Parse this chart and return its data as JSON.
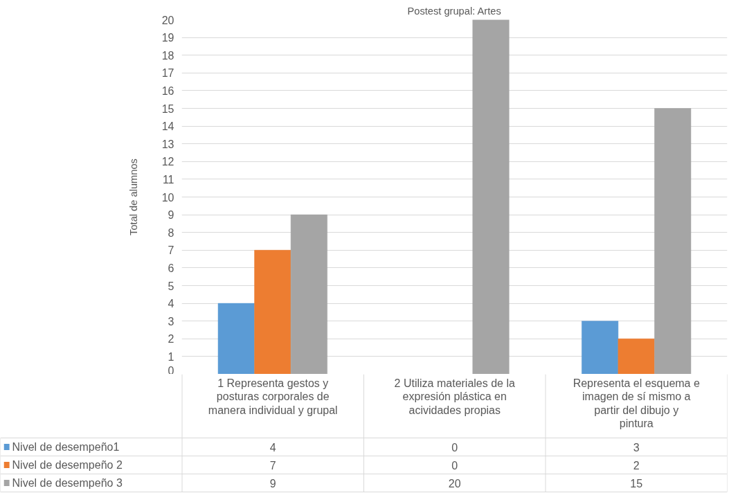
{
  "chart_data": {
    "type": "bar",
    "title": "Postest grupal: Artes",
    "ylabel": "Total de alumnos",
    "categories": [
      "1 Representa gestos y posturas corporales de manera individual y grupal",
      "2 Utiliza materiales de la expresión plástica en acividades propias",
      "Representa el esquema e imagen de sí mismo a partir del dibujo y pintura"
    ],
    "series": [
      {
        "name": "Nivel de desempeño1",
        "color": "#5b9bd5",
        "values": [
          4,
          0,
          3
        ]
      },
      {
        "name": "Nivel de desempeño 2",
        "color": "#ed7d31",
        "values": [
          7,
          0,
          2
        ]
      },
      {
        "name": "Nivel de desempeño 3",
        "color": "#a5a5a5",
        "values": [
          9,
          20,
          15
        ]
      }
    ],
    "ylim": [
      0,
      20
    ],
    "yticks": [
      0,
      1,
      2,
      3,
      4,
      5,
      6,
      7,
      8,
      9,
      10,
      11,
      12,
      13,
      14,
      15,
      16,
      17,
      18,
      19,
      20
    ],
    "grid": "y",
    "legend": "bottom",
    "data_labels": true
  }
}
